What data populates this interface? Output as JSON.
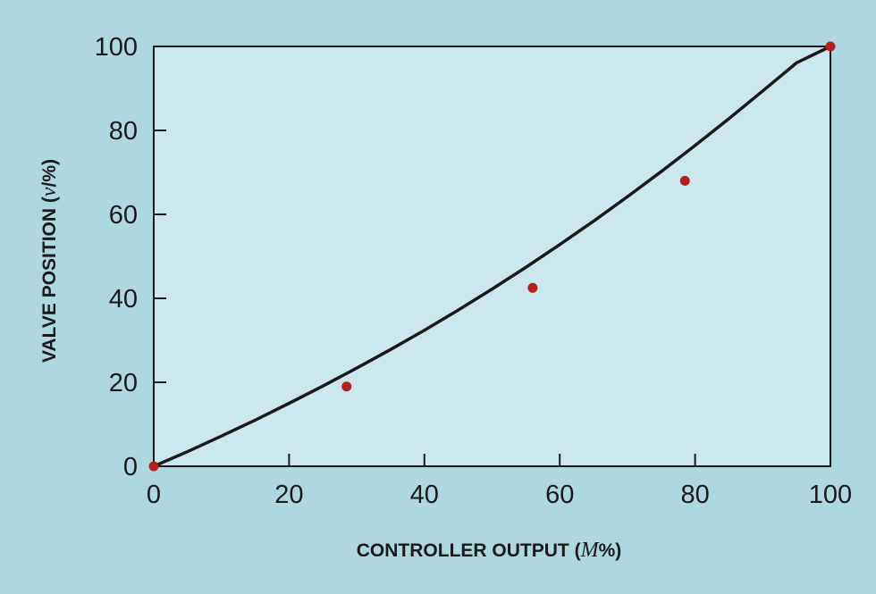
{
  "chart_data": {
    "type": "line",
    "xlabel_prefix": "CONTROLLER OUTPUT (",
    "xlabel_var": "M",
    "xlabel_suffix": "%)",
    "ylabel_prefix": "VALVE POSITION (",
    "ylabel_var": "v",
    "ylabel_suffix": "/%)",
    "xlim": [
      0,
      100
    ],
    "ylim": [
      0,
      100
    ],
    "xticks": [
      0,
      20,
      40,
      60,
      80,
      100
    ],
    "yticks": [
      0,
      20,
      40,
      60,
      80,
      100
    ],
    "grid": false,
    "curve": {
      "x": [
        0,
        5,
        10,
        15,
        20,
        25,
        30,
        35,
        40,
        45,
        50,
        55,
        60,
        65,
        70,
        75,
        80,
        85,
        90,
        95,
        100
      ],
      "y": [
        0,
        3.5,
        7.2,
        11.0,
        15.0,
        19.1,
        23.4,
        27.8,
        32.4,
        37.2,
        42.2,
        47.4,
        52.8,
        58.4,
        64.2,
        70.2,
        76.4,
        82.8,
        89.4,
        96.1,
        100
      ]
    },
    "points": {
      "x": [
        0,
        28.5,
        56,
        78.5,
        100
      ],
      "y": [
        0,
        19,
        42.5,
        68,
        100
      ]
    },
    "colors": {
      "background": "#aed7e0",
      "plot_area": "#cde7ee",
      "curve": "#1a1a1a",
      "points": "#b3211c"
    }
  }
}
